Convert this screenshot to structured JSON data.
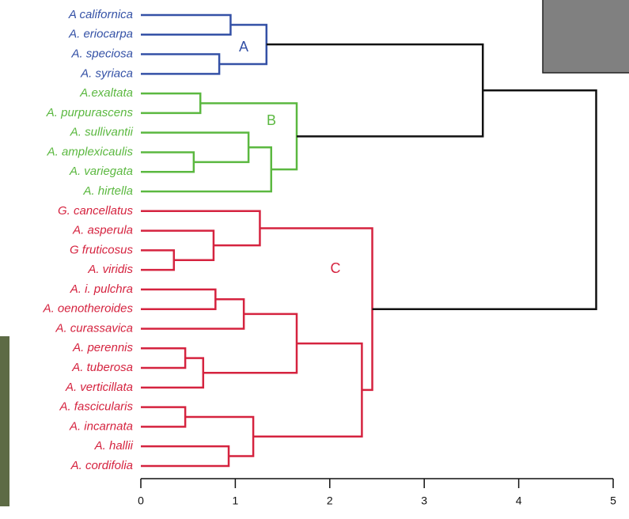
{
  "chart_data": {
    "type": "dendrogram",
    "clusters": [
      {
        "label": "A",
        "color": "#3451a6"
      },
      {
        "label": "B",
        "color": "#5bb840"
      },
      {
        "label": "C",
        "color": "#d5233f"
      }
    ],
    "leaves": [
      {
        "name": "A californica",
        "cluster": 0
      },
      {
        "name": "A. eriocarpa",
        "cluster": 0
      },
      {
        "name": "A. speciosa",
        "cluster": 0
      },
      {
        "name": "A. syriaca",
        "cluster": 0
      },
      {
        "name": "A.exaltata",
        "cluster": 1
      },
      {
        "name": "A. purpurascens",
        "cluster": 1
      },
      {
        "name": "A. sullivantii",
        "cluster": 1
      },
      {
        "name": "A. amplexicaulis",
        "cluster": 1
      },
      {
        "name": "A. variegata",
        "cluster": 1
      },
      {
        "name": "A. hirtella",
        "cluster": 1
      },
      {
        "name": "G. cancellatus",
        "cluster": 2
      },
      {
        "name": "A. asperula",
        "cluster": 2
      },
      {
        "name": "G fruticosus",
        "cluster": 2
      },
      {
        "name": "A. viridis",
        "cluster": 2
      },
      {
        "name": "A. i. pulchra",
        "cluster": 2
      },
      {
        "name": "A. oenotheroides",
        "cluster": 2
      },
      {
        "name": "A. curassavica",
        "cluster": 2
      },
      {
        "name": "A. perennis",
        "cluster": 2
      },
      {
        "name": "A. tuberosa",
        "cluster": 2
      },
      {
        "name": "A. verticillata",
        "cluster": 2
      },
      {
        "name": "A. fascicularis",
        "cluster": 2
      },
      {
        "name": "A. incarnata",
        "cluster": 2
      },
      {
        "name": "A. hallii",
        "cluster": 2
      },
      {
        "name": "A. cordifolia",
        "cluster": 2
      }
    ],
    "merges": [
      {
        "left": 0,
        "right": 1,
        "height": 0.95,
        "cluster": 0
      },
      {
        "left": 2,
        "right": 3,
        "height": 0.83,
        "cluster": 0
      },
      {
        "left": 24,
        "right": 25,
        "height": 1.33,
        "cluster": 0
      },
      {
        "left": 4,
        "right": 5,
        "height": 0.63,
        "cluster": 1
      },
      {
        "left": 7,
        "right": 8,
        "height": 0.56,
        "cluster": 1
      },
      {
        "left": 6,
        "right": 28,
        "height": 1.14,
        "cluster": 1
      },
      {
        "left": 29,
        "right": 9,
        "height": 1.38,
        "cluster": 1
      },
      {
        "left": 27,
        "right": 30,
        "height": 1.65,
        "cluster": 1
      },
      {
        "left": 26,
        "right": 31,
        "height": 3.62,
        "cluster": null
      },
      {
        "left": 12,
        "right": 13,
        "height": 0.35,
        "cluster": 2
      },
      {
        "left": 11,
        "right": 33,
        "height": 0.77,
        "cluster": 2
      },
      {
        "left": 10,
        "right": 34,
        "height": 1.26,
        "cluster": 2
      },
      {
        "left": 14,
        "right": 15,
        "height": 0.79,
        "cluster": 2
      },
      {
        "left": 36,
        "right": 16,
        "height": 1.09,
        "cluster": 2
      },
      {
        "left": 17,
        "right": 18,
        "height": 0.47,
        "cluster": 2
      },
      {
        "left": 38,
        "right": 19,
        "height": 0.66,
        "cluster": 2
      },
      {
        "left": 37,
        "right": 39,
        "height": 1.65,
        "cluster": 2
      },
      {
        "left": 20,
        "right": 21,
        "height": 0.47,
        "cluster": 2
      },
      {
        "left": 22,
        "right": 23,
        "height": 0.93,
        "cluster": 2
      },
      {
        "left": 41,
        "right": 42,
        "height": 1.19,
        "cluster": 2
      },
      {
        "left": 40,
        "right": 43,
        "height": 2.34,
        "cluster": 2
      },
      {
        "left": 35,
        "right": 44,
        "height": 2.45,
        "cluster": 2
      },
      {
        "left": 32,
        "right": 45,
        "height": 4.82,
        "cluster": null
      }
    ],
    "xlim": [
      0,
      5
    ],
    "xticks": [
      0,
      1,
      2,
      3,
      4,
      5
    ]
  }
}
